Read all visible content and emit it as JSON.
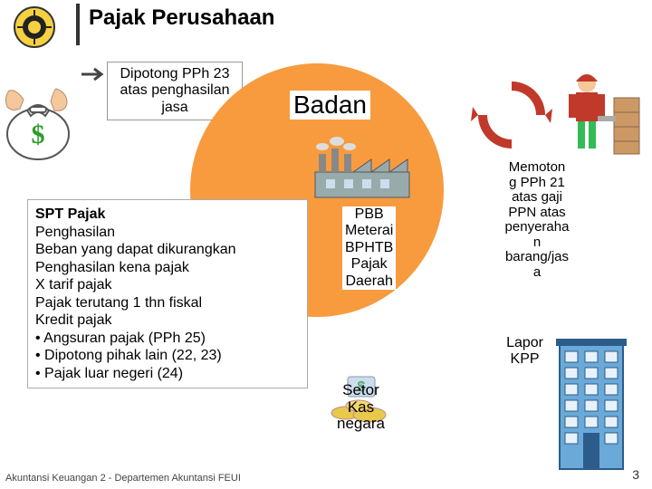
{
  "title": "Pajak Perusahaan",
  "topbox": "Dipotong PPh 23 atas penghasilan jasa",
  "badan": "Badan",
  "centerlist": [
    "PBB",
    "Meterai",
    "BPHTB",
    "Pajak",
    "Daerah"
  ],
  "spt": {
    "header": "SPT Pajak",
    "lines": [
      "Penghasilan",
      "Beban yang dapat dikurangkan",
      "Penghasilan kena pajak",
      "X tarif pajak",
      "Pajak terutang 1 thn fiskal",
      "Kredit pajak",
      "• Angsuran pajak (PPh 25)",
      "• Dipotong pihak lain (22, 23)",
      "• Pajak luar negeri (24)"
    ]
  },
  "rightbox": "Memotong PPh 21 atas gaji PPN atas penyerahan barang/jasa",
  "lapor": "Lapor KPP",
  "setor": "Setor Kas negara",
  "footer": "Akuntansi Keuangan 2 - Departemen Akuntansi FEUI",
  "page": "3",
  "colors": {
    "circle": "#f79b3e",
    "arrow_red": "#c0392b",
    "worker_red": "#c0392b",
    "building_blue": "#6aa9d8",
    "building_outline": "#2c5d8a"
  }
}
